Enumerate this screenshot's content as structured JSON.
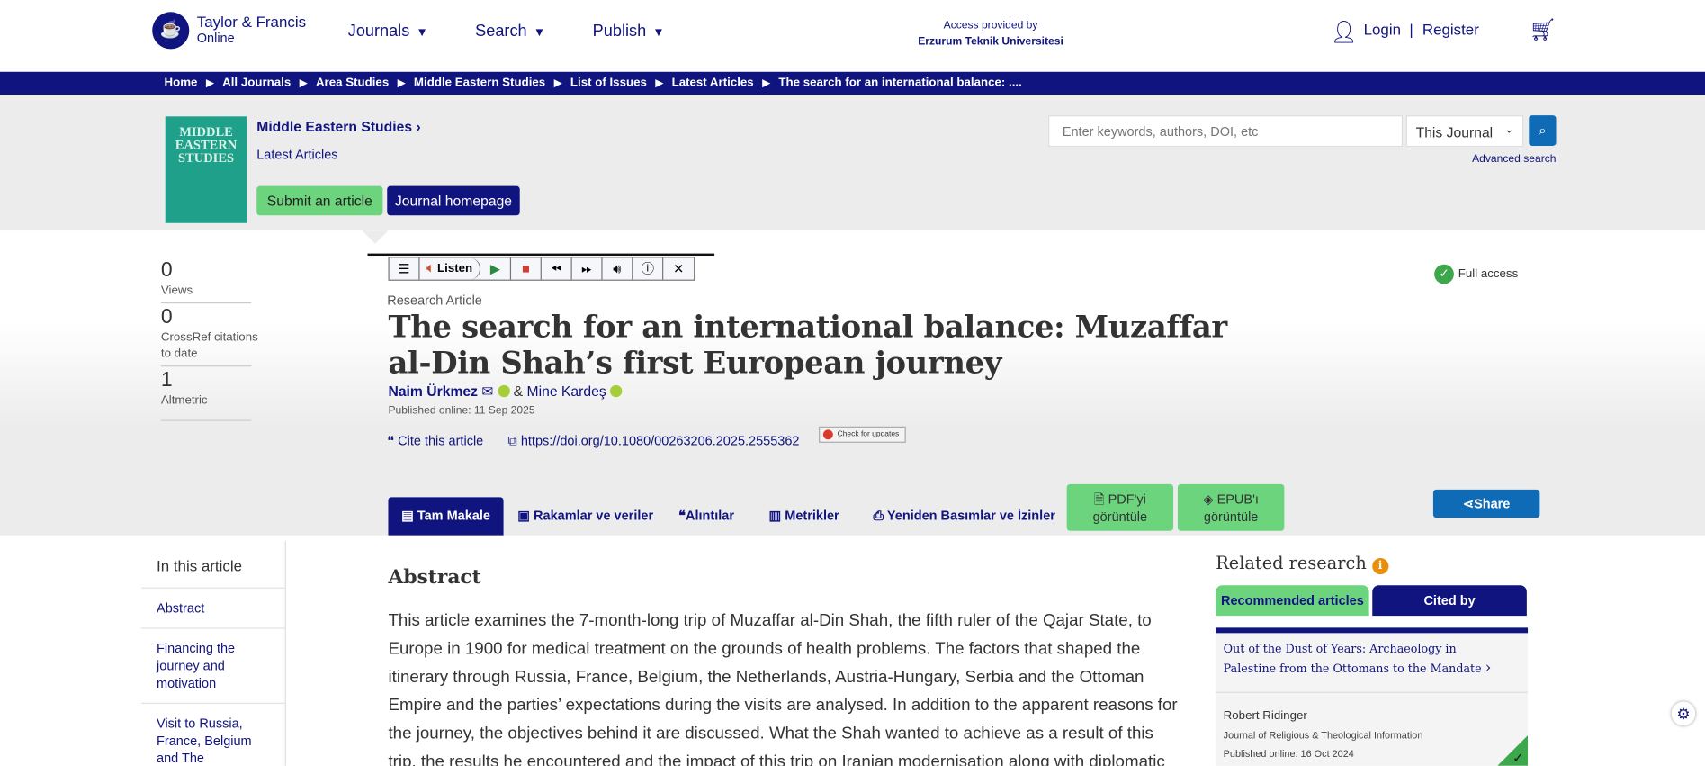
{
  "header": {
    "logo_line1": "Taylor & Francis",
    "logo_line2": "Online",
    "nav": [
      "Journals",
      "Search",
      "Publish"
    ],
    "access_label": "Access provided by",
    "access_org": "Erzurum Teknik Universitesi",
    "login": "Login",
    "register": "Register",
    "separator": "|"
  },
  "breadcrumb": [
    "Home",
    "All Journals",
    "Area Studies",
    "Middle Eastern Studies",
    "List of Issues",
    "Latest Articles",
    "The search for an international balance: ...."
  ],
  "journal": {
    "cover_text": "MIDDLE EASTERN STUDIES",
    "title": "Middle Eastern Studies",
    "subtitle": "Latest Articles",
    "submit": "Submit an article",
    "homepage": "Journal homepage"
  },
  "search": {
    "placeholder": "Enter keywords, authors, DOI, etc",
    "scope": "This Journal",
    "advanced": "Advanced search"
  },
  "metrics": [
    {
      "value": "0",
      "label": "Views"
    },
    {
      "value": "0",
      "label": "CrossRef citations to date"
    },
    {
      "value": "1",
      "label": "Altmetric"
    }
  ],
  "toolbar": {
    "listen": "Listen"
  },
  "article": {
    "type": "Research Article",
    "title": "The search for an international balance: Muzaffar al-Din Shah’s first European journey",
    "author1": "Naim Ürkmez",
    "amp": "&",
    "author2": "Mine Kardeş",
    "published": "Published online: 11 Sep 2025",
    "cite": "Cite this article",
    "doi": "https://doi.org/10.1080/00263206.2025.2555362",
    "check_updates": "Check for updates",
    "access": "Full access"
  },
  "tabs": [
    "Tam Makale",
    "Rakamlar ve veriler",
    "Alıntılar",
    "Metrikler",
    "Yeniden Basımlar ve İzinler"
  ],
  "downloads": {
    "pdf_line1": "PDF'yi",
    "pdf_line2": "görüntüle",
    "epub_line1": "EPUB'ı",
    "epub_line2": "görüntüle"
  },
  "share": "Share",
  "toc": {
    "heading": "In this article",
    "items": [
      "Abstract",
      "Financing the journey and motivation",
      "Visit to Russia, France, Belgium and The"
    ]
  },
  "abstract": {
    "heading": "Abstract",
    "text": "This article examines the 7-month-long trip of Muzaffar al-Din Shah, the fifth ruler of the Qajar State, to Europe in 1900 for medical treatment on the grounds of health problems. The factors that shaped the itinerary through Russia, France, Belgium, the Netherlands, Austria-Hungary, Serbia and the Ottoman Empire and the parties’ expectations during the visits are analysed. In addition to the apparent reasons for the journey, the objectives behind it are discussed. What the Shah wanted to achieve as a result of this trip, the results he encountered and the impact of this trip on Iranian modernisation along with diplomatic"
  },
  "related": {
    "heading": "Related research",
    "tabs": [
      "Recommended articles",
      "Cited by"
    ],
    "card": {
      "title": "Out of the Dust of Years: Archaeology in Palestine from the Ottomans to the Mandate",
      "author": "Robert Ridinger",
      "journal": "Journal of Religious & Theological Information",
      "published": "Published online: 16 Oct 2024"
    }
  },
  "colors": {
    "navy": "#10147e",
    "green": "#6dd47e",
    "blue": "#0f6bb5"
  }
}
